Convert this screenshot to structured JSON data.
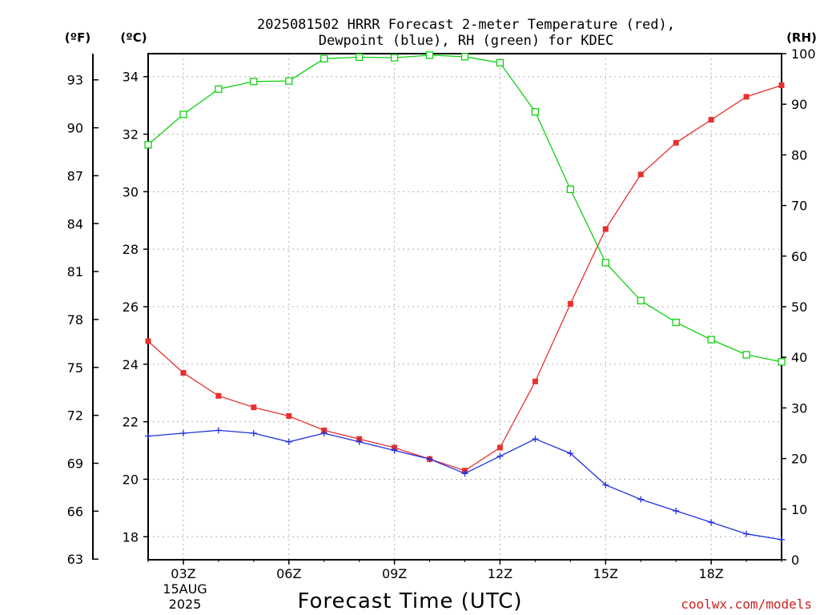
{
  "chart_data": {
    "type": "line",
    "title_line1": "2025081502 HRRR Forecast 2-meter Temperature (red),",
    "title_line2": "Dewpoint (blue), RH (green) for KDEC",
    "xlabel": "Forecast Time (UTC)",
    "credit": "coolwx.com/models",
    "unit_f": "(ºF)",
    "unit_c": "(ºC)",
    "unit_rh": "(RH)",
    "date_label": [
      "15AUG",
      "2025"
    ],
    "x_hours": [
      2,
      3,
      4,
      5,
      6,
      7,
      8,
      9,
      10,
      11,
      12,
      13,
      14,
      15,
      16,
      17,
      18,
      19,
      20
    ],
    "xlim": [
      2,
      20
    ],
    "x_ticks": [
      {
        "hour": 3,
        "label": "03Z"
      },
      {
        "hour": 6,
        "label": "06Z"
      },
      {
        "hour": 9,
        "label": "09Z"
      },
      {
        "hour": 12,
        "label": "12Z"
      },
      {
        "hour": 15,
        "label": "15Z"
      },
      {
        "hour": 18,
        "label": "18Z"
      }
    ],
    "y_celsius_lim": [
      17.2,
      34.8
    ],
    "y_celsius_ticks": [
      18,
      20,
      22,
      24,
      26,
      28,
      30,
      32,
      34
    ],
    "y_fahrenheit_ticks": [
      63,
      66,
      69,
      72,
      75,
      78,
      81,
      84,
      87,
      90,
      93
    ],
    "y_rh_lim": [
      0,
      100
    ],
    "y_rh_ticks": [
      0,
      10,
      20,
      30,
      40,
      50,
      60,
      70,
      80,
      90,
      100
    ],
    "series": [
      {
        "id": "temperature",
        "axis": "celsius",
        "color": "#e83030",
        "marker": "filled-square",
        "values": [
          24.8,
          23.7,
          22.9,
          22.5,
          22.2,
          21.7,
          21.4,
          21.1,
          20.7,
          20.3,
          21.1,
          23.4,
          26.1,
          28.7,
          30.6,
          31.7,
          32.5,
          33.3,
          33.7
        ]
      },
      {
        "id": "dewpoint",
        "axis": "celsius",
        "color": "#2030e0",
        "marker": "plus",
        "values": [
          21.5,
          21.6,
          21.7,
          21.6,
          21.3,
          21.6,
          21.3,
          21.0,
          20.7,
          20.2,
          20.8,
          21.4,
          20.9,
          19.8,
          19.3,
          18.9,
          18.5,
          18.1,
          17.9
        ]
      },
      {
        "id": "rh",
        "axis": "rh",
        "color": "#10d010",
        "marker": "open-square",
        "values": [
          82,
          88,
          93,
          94.5,
          94.6,
          99,
          99.3,
          99.2,
          99.7,
          99.4,
          98.2,
          88.5,
          73.2,
          58.7,
          51.2,
          46.9,
          43.5,
          40.5,
          39.1
        ]
      }
    ]
  }
}
